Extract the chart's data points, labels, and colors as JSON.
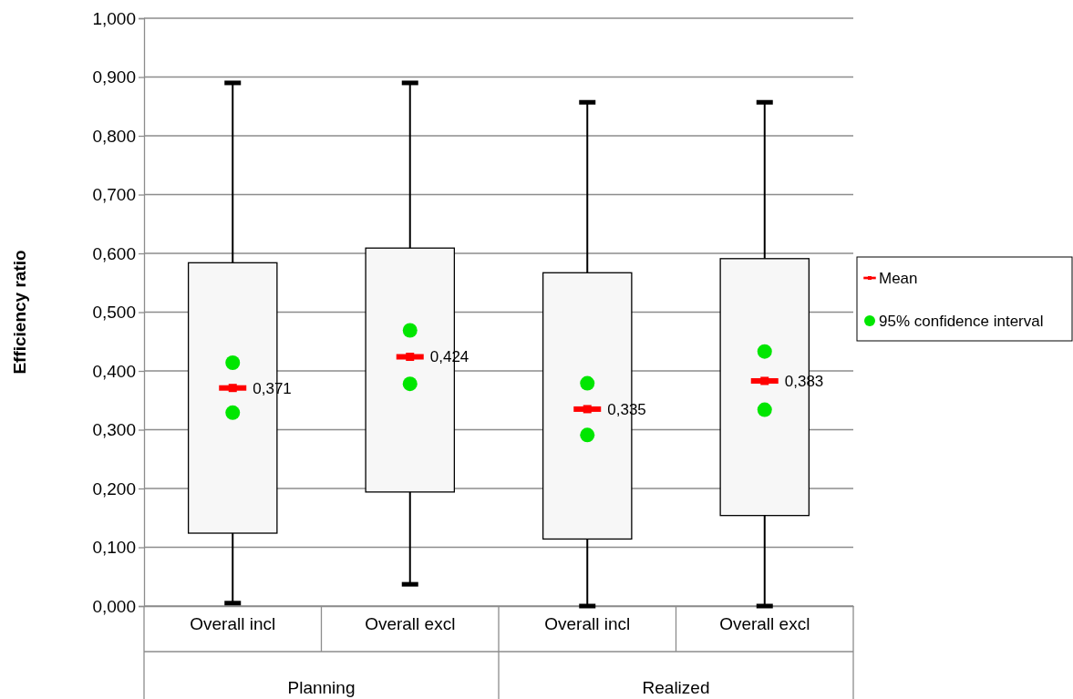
{
  "chart_data": {
    "type": "box",
    "ylabel": "Efficiency ratio",
    "categories": [
      "Overall incl",
      "Overall excl",
      "Overall incl",
      "Overall excl"
    ],
    "boxes": [
      {
        "low": 0.005,
        "q1": 0.124,
        "q3": 0.584,
        "high": 0.89
      },
      {
        "low": 0.037,
        "q1": 0.194,
        "q3": 0.609,
        "high": 0.89
      },
      {
        "low": 0.0,
        "q1": 0.114,
        "q3": 0.567,
        "high": 0.857
      },
      {
        "low": 0.0,
        "q1": 0.154,
        "q3": 0.591,
        "high": 0.857
      }
    ],
    "series": [
      {
        "name": "Mean",
        "type": "scatter",
        "marker": "square",
        "color": "#ff0000",
        "values": [
          0.371,
          0.424,
          0.335,
          0.383
        ],
        "value_labels": [
          "0,371",
          "0,424",
          "0,335",
          "0,383"
        ]
      },
      {
        "name": "95% confidence interval",
        "type": "scatter",
        "marker": "circle",
        "color": "#00e600",
        "values": [
          0.414,
          0.469,
          0.379,
          0.433
        ]
      },
      {
        "type": "scatter",
        "marker": "circle",
        "color": "#00e600",
        "values": [
          0.329,
          0.378,
          0.291,
          0.334
        ]
      }
    ],
    "annotations": [
      "Planning",
      "Realized"
    ],
    "ylim": [
      0,
      1
    ],
    "yticks": [
      {
        "value": 0,
        "label": "0,000"
      },
      {
        "value": 0.1,
        "label": "0,100"
      },
      {
        "value": 0.2,
        "label": "0,200"
      },
      {
        "value": 0.3,
        "label": "0,300"
      },
      {
        "value": 0.4,
        "label": "0,400"
      },
      {
        "value": 0.5,
        "label": "0,500"
      },
      {
        "value": 0.6,
        "label": "0,600"
      },
      {
        "value": 0.7,
        "label": "0,700"
      },
      {
        "value": 0.8,
        "label": "0,800"
      },
      {
        "value": 0.9,
        "label": "0,900"
      },
      {
        "value": 1,
        "label": "1,000"
      }
    ],
    "grid": "y",
    "legend": "right"
  }
}
